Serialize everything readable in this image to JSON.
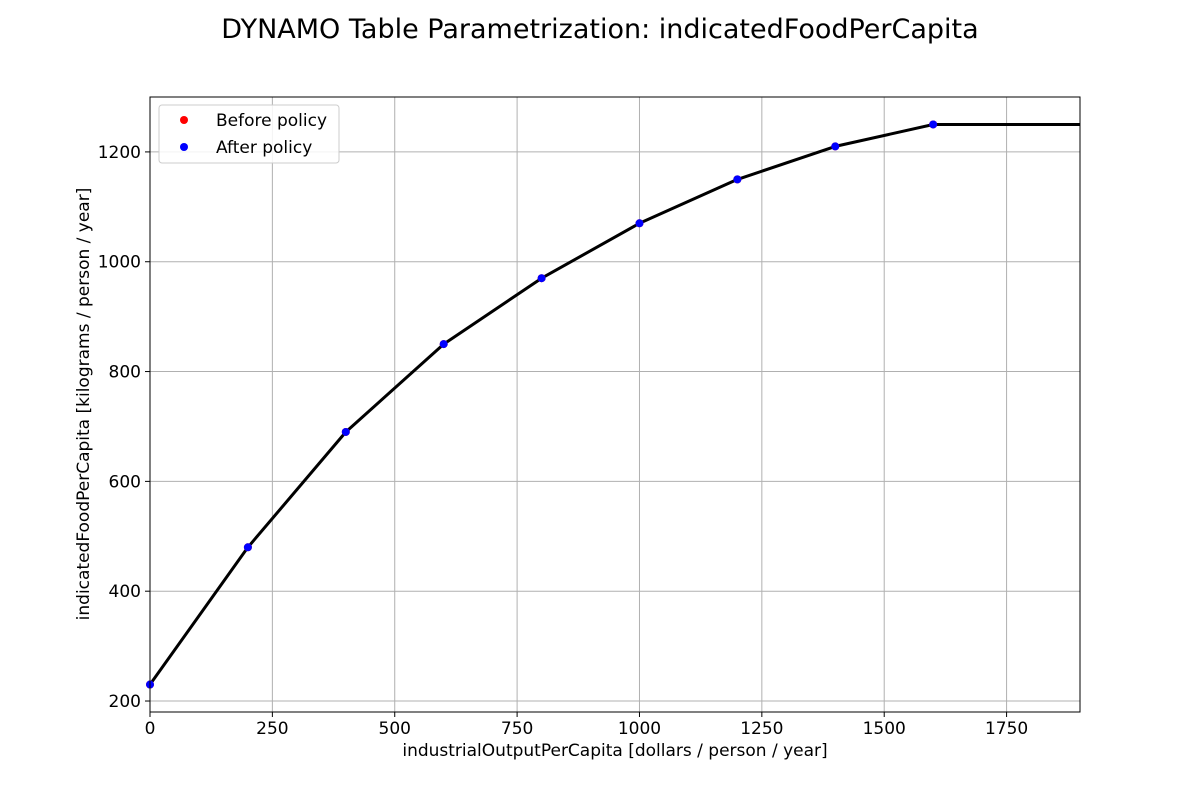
{
  "chart_data": {
    "type": "line",
    "title": "DYNAMO Table Parametrization: indicatedFoodPerCapita",
    "xlabel": "industrialOutputPerCapita [dollars / person / year]",
    "ylabel": "indicatedFoodPerCapita [kilograms / person / year]",
    "xlim": [
      0,
      1900
    ],
    "ylim": [
      180,
      1300
    ],
    "xticks": [
      0,
      250,
      500,
      750,
      1000,
      1250,
      1500,
      1750
    ],
    "yticks": [
      200,
      400,
      600,
      800,
      1000,
      1200
    ],
    "grid": true,
    "legend_position": "top-left",
    "line": {
      "color": "#000000",
      "x": [
        0,
        200,
        400,
        600,
        800,
        1000,
        1200,
        1400,
        1600,
        1900
      ],
      "y": [
        230,
        480,
        690,
        850,
        970,
        1070,
        1150,
        1210,
        1250,
        1250
      ]
    },
    "series": [
      {
        "name": "Before policy",
        "color": "#ff0000",
        "x": [
          0,
          200,
          400,
          600,
          800,
          1000,
          1200,
          1400,
          1600
        ],
        "y": [
          230,
          480,
          690,
          850,
          970,
          1070,
          1150,
          1210,
          1250
        ]
      },
      {
        "name": "After policy",
        "color": "#0000ff",
        "x": [
          0,
          200,
          400,
          600,
          800,
          1000,
          1200,
          1400,
          1600
        ],
        "y": [
          230,
          480,
          690,
          850,
          970,
          1070,
          1150,
          1210,
          1250
        ]
      }
    ]
  }
}
